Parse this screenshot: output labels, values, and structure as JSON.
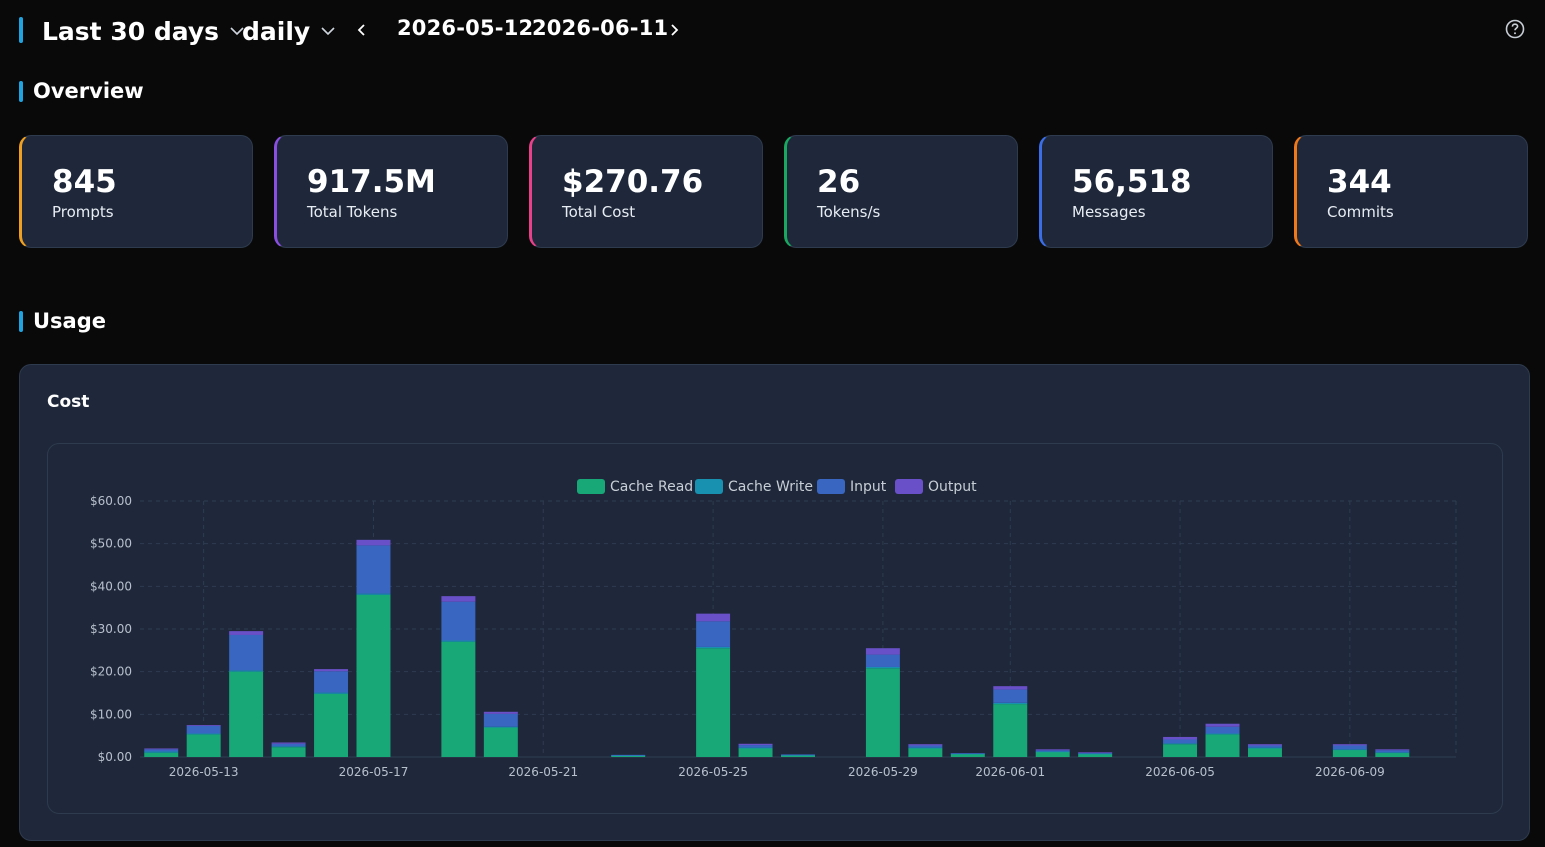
{
  "header": {
    "range_label": "Last 30 days",
    "granularity_label": "daily",
    "start_date": "2026-05-12",
    "end_date": "2026-06-11",
    "prev_icon": "chevron-left-icon",
    "next_icon": "chevron-right-icon",
    "help_icon": "question-circle-icon"
  },
  "overview": {
    "title": "Overview",
    "cards": [
      {
        "value": "845",
        "label": "Prompts",
        "color": "#f0a020"
      },
      {
        "value": "917.5M",
        "label": "Total Tokens",
        "color": "#8a4fe0"
      },
      {
        "value": "$270.76",
        "label": "Total Cost",
        "color": "#e8408a"
      },
      {
        "value": "26",
        "label": "Tokens/s",
        "color": "#18a860"
      },
      {
        "value": "56,518",
        "label": "Messages",
        "color": "#3a6ee8"
      },
      {
        "value": "344",
        "label": "Commits",
        "color": "#f07818"
      }
    ]
  },
  "usage": {
    "title": "Usage",
    "panel_title": "Cost"
  },
  "chart_data": {
    "type": "bar",
    "stacked": true,
    "categories": [
      "2026-05-12",
      "2026-05-13",
      "2026-05-14",
      "2026-05-15",
      "2026-05-16",
      "2026-05-17",
      "2026-05-18",
      "2026-05-19",
      "2026-05-20",
      "2026-05-21",
      "2026-05-22",
      "2026-05-23",
      "2026-05-24",
      "2026-05-25",
      "2026-05-26",
      "2026-05-27",
      "2026-05-28",
      "2026-05-29",
      "2026-05-30",
      "2026-05-31",
      "2026-06-01",
      "2026-06-02",
      "2026-06-03",
      "2026-06-04",
      "2026-06-05",
      "2026-06-06",
      "2026-06-07",
      "2026-06-08",
      "2026-06-09",
      "2026-06-10",
      "2026-06-11"
    ],
    "tick_labels": [
      "2026-05-13",
      "2026-05-17",
      "2026-05-21",
      "2026-05-25",
      "2026-05-29",
      "2026-06-01",
      "2026-06-05",
      "2026-06-09"
    ],
    "tick_positions": [
      1,
      5,
      9,
      13,
      17,
      20,
      24,
      28
    ],
    "series": [
      {
        "name": "Cache Read",
        "color": "#18a878",
        "values": [
          1.0,
          5.3,
          20.0,
          2.3,
          14.8,
          38.0,
          0,
          27.0,
          6.9,
          0,
          0,
          0.3,
          0,
          25.5,
          2.0,
          0.4,
          0,
          20.8,
          2.0,
          0.7,
          12.4,
          1.2,
          0.7,
          0,
          3.0,
          5.3,
          2.0,
          0,
          1.7,
          1.0,
          0
        ]
      },
      {
        "name": "Cache Write",
        "color": "#1890b0",
        "values": [
          0.3,
          0.2,
          0.3,
          0.2,
          0.3,
          0.3,
          0,
          0.3,
          0.2,
          0,
          0,
          0.1,
          0,
          0.3,
          0.2,
          0.1,
          0,
          0.3,
          0.2,
          0.1,
          0.3,
          0.1,
          0.1,
          0,
          0.2,
          0.2,
          0.2,
          0,
          0.1,
          0.1,
          0
        ]
      },
      {
        "name": "Input",
        "color": "#3866c0",
        "values": [
          0.5,
          1.8,
          8.3,
          0.6,
          5.0,
          11.3,
          0,
          9.1,
          3.0,
          0,
          0,
          0.1,
          0,
          6.0,
          0.6,
          0.1,
          0,
          2.9,
          0.5,
          0.1,
          3.1,
          0.3,
          0.2,
          0,
          0.9,
          1.6,
          0.5,
          0,
          0.9,
          0.5,
          0
        ]
      },
      {
        "name": "Output",
        "color": "#6a50c8",
        "values": [
          0.2,
          0.2,
          0.9,
          0.3,
          0.5,
          1.3,
          0,
          1.3,
          0.5,
          0,
          0,
          0,
          0,
          1.8,
          0.3,
          0,
          0,
          1.5,
          0.3,
          0,
          0.8,
          0.2,
          0.1,
          0,
          0.6,
          0.7,
          0.3,
          0,
          0.3,
          0.2,
          0
        ]
      }
    ],
    "ylim": [
      0,
      60
    ],
    "y_ticks": [
      "$0.00",
      "$10.00",
      "$20.00",
      "$30.00",
      "$40.00",
      "$50.00",
      "$60.00"
    ],
    "legend_position": "top-center",
    "grid": true
  }
}
